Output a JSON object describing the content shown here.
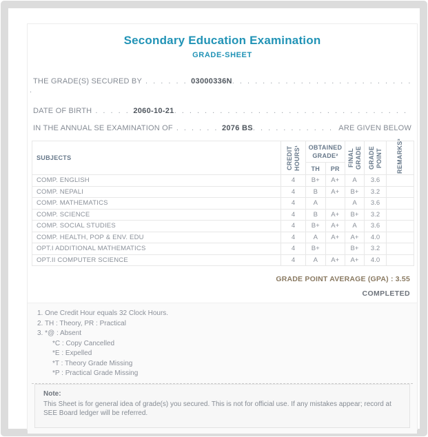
{
  "header": {
    "title": "Secondary Education Examination",
    "subtitle": "GRADE-SHEET"
  },
  "info": {
    "secured_by": {
      "label": "THE GRADE(S) SECURED BY",
      "leader": ". . . . . .",
      "value": "03000336N",
      "wrap_dot": "."
    },
    "dob": {
      "label": "DATE OF BIRTH",
      "leader": ". . . . .",
      "value": "2060-10-21"
    },
    "exam": {
      "label": "IN THE ANNUAL SE EXAMINATION OF",
      "leader": ". . . . . .",
      "value": "2076 BS",
      "suffix": "ARE GIVEN BELOW"
    }
  },
  "table": {
    "headers": {
      "subjects": "SUBJECTS",
      "credit_hours": "CREDIT HOURS¹",
      "obtained_grade": "OBTAINED GRADE²",
      "th": "TH",
      "pr": "PR",
      "final_grade": "FINAL GRADE",
      "grade_point": "GRADE POINT",
      "remarks": "REMARKS³"
    },
    "rows": [
      {
        "subject": "COMP. ENGLISH",
        "credit": "4",
        "th": "B+",
        "pr": "A+",
        "final": "A",
        "gp": "3.6",
        "remarks": ""
      },
      {
        "subject": "COMP. NEPALI",
        "credit": "4",
        "th": "B",
        "pr": "A+",
        "final": "B+",
        "gp": "3.2",
        "remarks": ""
      },
      {
        "subject": "COMP. MATHEMATICS",
        "credit": "4",
        "th": "A",
        "pr": "",
        "final": "A",
        "gp": "3.6",
        "remarks": ""
      },
      {
        "subject": "COMP. SCIENCE",
        "credit": "4",
        "th": "B",
        "pr": "A+",
        "final": "B+",
        "gp": "3.2",
        "remarks": ""
      },
      {
        "subject": "COMP. SOCIAL STUDIES",
        "credit": "4",
        "th": "B+",
        "pr": "A+",
        "final": "A",
        "gp": "3.6",
        "remarks": ""
      },
      {
        "subject": "COMP. HEALTH, POP & ENV. EDU",
        "credit": "4",
        "th": "A",
        "pr": "A+",
        "final": "A+",
        "gp": "4.0",
        "remarks": ""
      },
      {
        "subject": "OPT.I ADDITIONAL MATHEMATICS",
        "credit": "4",
        "th": "B+",
        "pr": "",
        "final": "B+",
        "gp": "3.2",
        "remarks": ""
      },
      {
        "subject": "OPT.II COMPUTER SCIENCE",
        "credit": "4",
        "th": "A",
        "pr": "A+",
        "final": "A+",
        "gp": "4.0",
        "remarks": ""
      }
    ]
  },
  "summary": {
    "gpa": "GRADE POINT AVERAGE (GPA) : 3.55",
    "status": "COMPLETED"
  },
  "footnotes": {
    "item1": "1. One Credit Hour equals 32 Clock Hours.",
    "item2": "2. TH : Theory, PR : Practical",
    "item3": "3. *@ : Absent",
    "sub1": "*C : Copy Cancelled",
    "sub2": "*E : Expelled",
    "sub3": "*T : Theory Grade Missing",
    "sub4": "*P : Practical Grade Missing"
  },
  "note": {
    "label": "Note:",
    "text": "This Sheet is for general idea of grade(s) you secured. This is not for official use. If any mistakes appear; record at SEE Board ledger will be referred."
  },
  "colors": {
    "accent_teal": "#2193b6",
    "gpa_text": "#8a7a62",
    "body_text": "#858b94",
    "frame_gray": "#dcdcdc"
  }
}
